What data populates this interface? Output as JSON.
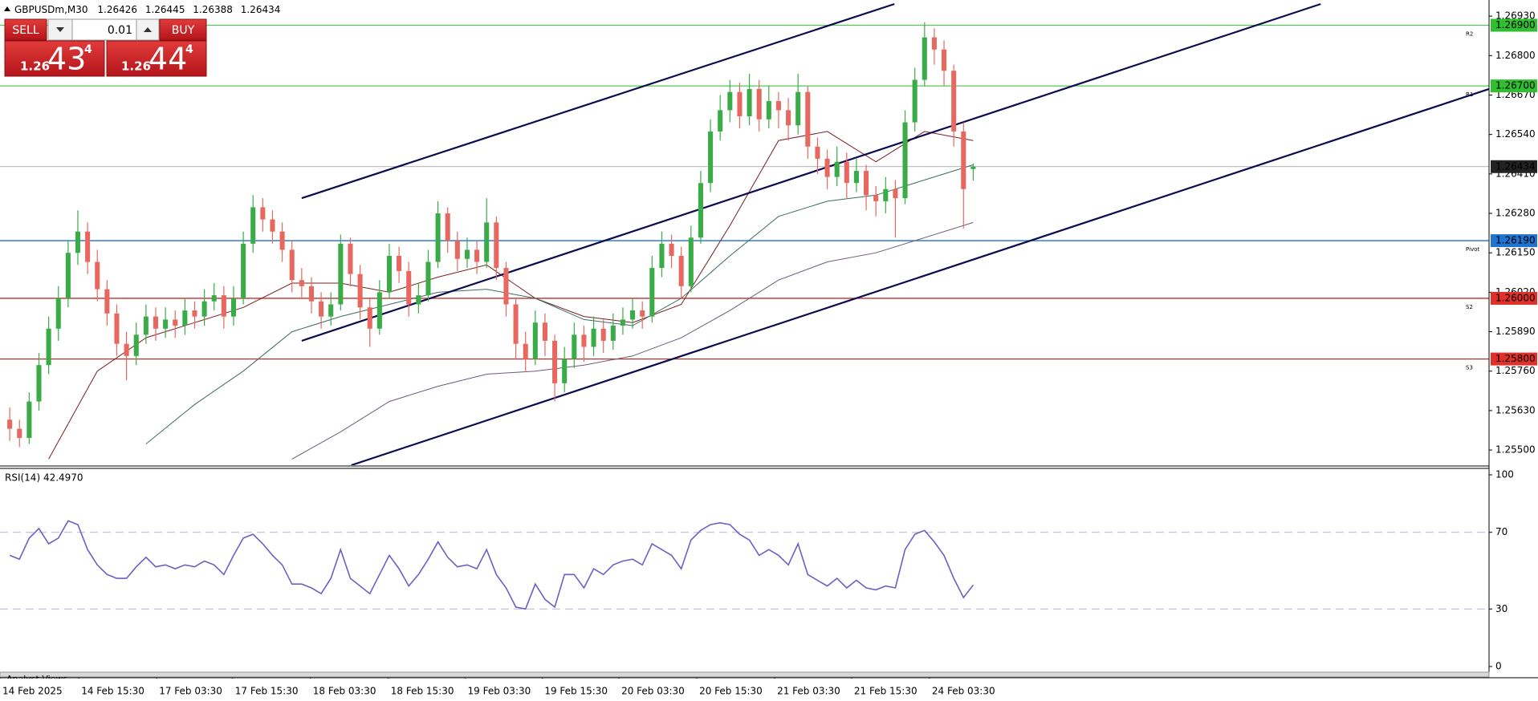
{
  "chart_data": [
    {
      "type": "candlestick",
      "title": "GBPUSDm,M30",
      "up_color": "#3aac47",
      "down_color": "#e8675f",
      "xlim": [
        -1,
        152
      ],
      "xticks": [
        {
          "value": -1,
          "label": "14 Feb 2025"
        },
        {
          "value": 7.1,
          "label": "14 Feb 15:30"
        },
        {
          "value": 15.1,
          "label": "17 Feb 03:30"
        },
        {
          "value": 22.9,
          "label": "17 Feb 15:30"
        },
        {
          "value": 30.9,
          "label": "18 Feb 03:30"
        },
        {
          "value": 38.9,
          "label": "18 Feb 15:30"
        },
        {
          "value": 46.8,
          "label": "19 Feb 03:30"
        },
        {
          "value": 54.7,
          "label": "19 Feb 15:30"
        },
        {
          "value": 62.6,
          "label": "20 Feb 03:30"
        },
        {
          "value": 70.6,
          "label": "20 Feb 15:30"
        },
        {
          "value": 78.6,
          "label": "21 Feb 03:30"
        },
        {
          "value": 86.5,
          "label": "21 Feb 15:30"
        },
        {
          "value": 94.5,
          "label": "24 Feb 03:30"
        }
      ],
      "ylim": [
        1.2545,
        1.2697
      ],
      "yticks": [
        {
          "value": 1.2693,
          "label": "1.26930"
        },
        {
          "value": 1.268,
          "label": "1.26800"
        },
        {
          "value": 1.2667,
          "label": "1.26670"
        },
        {
          "value": 1.2654,
          "label": "1.26540"
        },
        {
          "value": 1.2641,
          "label": "1.26410"
        },
        {
          "value": 1.2628,
          "label": "1.26280"
        },
        {
          "value": 1.2615,
          "label": "1.26150"
        },
        {
          "value": 1.2602,
          "label": "1.26020"
        },
        {
          "value": 1.2589,
          "label": "1.25890"
        },
        {
          "value": 1.2576,
          "label": "1.25760"
        },
        {
          "value": 1.2563,
          "label": "1.25630"
        },
        {
          "value": 1.255,
          "label": "1.25500"
        }
      ],
      "grid": false,
      "ohlc": [
        [
          1.256,
          1.2564,
          1.2553,
          1.2557
        ],
        [
          1.2557,
          1.256,
          1.2551,
          1.2554
        ],
        [
          1.2554,
          1.2569,
          1.2552,
          1.2566
        ],
        [
          1.2566,
          1.2582,
          1.2563,
          1.2578
        ],
        [
          1.2578,
          1.2594,
          1.2575,
          1.259
        ],
        [
          1.259,
          1.2604,
          1.2586,
          1.26
        ],
        [
          1.26,
          1.2619,
          1.2597,
          1.2615
        ],
        [
          1.2615,
          1.2629,
          1.2611,
          1.2622
        ],
        [
          1.2622,
          1.2625,
          1.2608,
          1.2612
        ],
        [
          1.2612,
          1.2616,
          1.2599,
          1.2603
        ],
        [
          1.2603,
          1.2606,
          1.2591,
          1.2595
        ],
        [
          1.2595,
          1.2598,
          1.2581,
          1.2585
        ],
        [
          1.2585,
          1.2589,
          1.2573,
          1.2581
        ],
        [
          1.2581,
          1.2592,
          1.2578,
          1.2588
        ],
        [
          1.2588,
          1.2598,
          1.2585,
          1.2594
        ],
        [
          1.2594,
          1.2597,
          1.2586,
          1.259
        ],
        [
          1.259,
          1.2597,
          1.2587,
          1.2593
        ],
        [
          1.2593,
          1.2596,
          1.2587,
          1.2591
        ],
        [
          1.2591,
          1.26,
          1.2588,
          1.2596
        ],
        [
          1.2596,
          1.2599,
          1.259,
          1.2594
        ],
        [
          1.2594,
          1.2603,
          1.2591,
          1.2599
        ],
        [
          1.2599,
          1.2605,
          1.2596,
          1.2601
        ],
        [
          1.2601,
          1.2604,
          1.259,
          1.2594
        ],
        [
          1.2594,
          1.2604,
          1.2591,
          1.26
        ],
        [
          1.26,
          1.2622,
          1.2598,
          1.2618
        ],
        [
          1.2618,
          1.2634,
          1.2615,
          1.263
        ],
        [
          1.263,
          1.2633,
          1.2622,
          1.2626
        ],
        [
          1.2626,
          1.2629,
          1.2618,
          1.2622
        ],
        [
          1.2622,
          1.2625,
          1.2612,
          1.2616
        ],
        [
          1.2616,
          1.2619,
          1.2602,
          1.2606
        ],
        [
          1.2606,
          1.261,
          1.26,
          1.2604
        ],
        [
          1.2604,
          1.2607,
          1.2595,
          1.2599
        ],
        [
          1.2599,
          1.2602,
          1.259,
          1.2594
        ],
        [
          1.2594,
          1.2602,
          1.2591,
          1.2598
        ],
        [
          1.2598,
          1.2621,
          1.2596,
          1.2618
        ],
        [
          1.2618,
          1.262,
          1.2604,
          1.2608
        ],
        [
          1.2608,
          1.2611,
          1.2593,
          1.2597
        ],
        [
          1.2597,
          1.26,
          1.2584,
          1.259
        ],
        [
          1.259,
          1.2606,
          1.2588,
          1.2602
        ],
        [
          1.2602,
          1.2618,
          1.26,
          1.2614
        ],
        [
          1.2614,
          1.2617,
          1.2605,
          1.2609
        ],
        [
          1.2609,
          1.2612,
          1.2594,
          1.2598
        ],
        [
          1.2598,
          1.2605,
          1.2595,
          1.2601
        ],
        [
          1.2601,
          1.2616,
          1.2599,
          1.2612
        ],
        [
          1.2612,
          1.2632,
          1.261,
          1.2628
        ],
        [
          1.2628,
          1.263,
          1.2615,
          1.2619
        ],
        [
          1.2619,
          1.2622,
          1.2609,
          1.2613
        ],
        [
          1.2613,
          1.262,
          1.261,
          1.2616
        ],
        [
          1.2616,
          1.2619,
          1.2608,
          1.2612
        ],
        [
          1.2612,
          1.2633,
          1.261,
          1.2625
        ],
        [
          1.2625,
          1.2627,
          1.2606,
          1.261
        ],
        [
          1.261,
          1.2612,
          1.2594,
          1.2598
        ],
        [
          1.2598,
          1.26,
          1.258,
          1.2585
        ],
        [
          1.2585,
          1.2589,
          1.2576,
          1.258
        ],
        [
          1.258,
          1.2596,
          1.2578,
          1.2592
        ],
        [
          1.2592,
          1.2595,
          1.2581,
          1.2586
        ],
        [
          1.2586,
          1.2588,
          1.2566,
          1.2572
        ],
        [
          1.2572,
          1.2584,
          1.2569,
          1.258
        ],
        [
          1.258,
          1.2592,
          1.2577,
          1.2588
        ],
        [
          1.2588,
          1.2591,
          1.2579,
          1.2584
        ],
        [
          1.2584,
          1.2594,
          1.2581,
          1.259
        ],
        [
          1.259,
          1.2593,
          1.2582,
          1.2586
        ],
        [
          1.2586,
          1.2595,
          1.2583,
          1.2591
        ],
        [
          1.2591,
          1.2597,
          1.2588,
          1.2593
        ],
        [
          1.2593,
          1.26,
          1.259,
          1.2596
        ],
        [
          1.2596,
          1.2599,
          1.259,
          1.2594
        ],
        [
          1.2594,
          1.2614,
          1.2592,
          1.261
        ],
        [
          1.261,
          1.2622,
          1.2607,
          1.2618
        ],
        [
          1.2618,
          1.2621,
          1.261,
          1.2614
        ],
        [
          1.2614,
          1.2617,
          1.26,
          1.2604
        ],
        [
          1.2604,
          1.2624,
          1.2602,
          1.262
        ],
        [
          1.262,
          1.2642,
          1.2618,
          1.2638
        ],
        [
          1.2638,
          1.2659,
          1.2635,
          1.2655
        ],
        [
          1.2655,
          1.2667,
          1.2652,
          1.2662
        ],
        [
          1.2662,
          1.2672,
          1.2658,
          1.2668
        ],
        [
          1.2668,
          1.2671,
          1.2656,
          1.266
        ],
        [
          1.266,
          1.2674,
          1.2657,
          1.2669
        ],
        [
          1.2669,
          1.2672,
          1.2655,
          1.2659
        ],
        [
          1.2659,
          1.267,
          1.2656,
          1.2665
        ],
        [
          1.2665,
          1.2668,
          1.2656,
          1.2662
        ],
        [
          1.2662,
          1.2666,
          1.2652,
          1.2657
        ],
        [
          1.2657,
          1.2674,
          1.2654,
          1.2668
        ],
        [
          1.2668,
          1.267,
          1.2646,
          1.265
        ],
        [
          1.265,
          1.2653,
          1.2641,
          1.2646
        ],
        [
          1.2646,
          1.2649,
          1.2636,
          1.264
        ],
        [
          1.264,
          1.265,
          1.2637,
          1.2645
        ],
        [
          1.2645,
          1.2648,
          1.2633,
          1.2638
        ],
        [
          1.2638,
          1.2646,
          1.2635,
          1.2642
        ],
        [
          1.2642,
          1.2644,
          1.2629,
          1.2634
        ],
        [
          1.2634,
          1.2637,
          1.2627,
          1.2632
        ],
        [
          1.2632,
          1.264,
          1.2628,
          1.2636
        ],
        [
          1.2636,
          1.2639,
          1.262,
          1.2633
        ],
        [
          1.2633,
          1.2662,
          1.2631,
          1.2658
        ],
        [
          1.2658,
          1.2676,
          1.2655,
          1.2672
        ],
        [
          1.2672,
          1.2691,
          1.267,
          1.2686
        ],
        [
          1.2686,
          1.2689,
          1.2677,
          1.2682
        ],
        [
          1.2682,
          1.2685,
          1.267,
          1.2675
        ],
        [
          1.2675,
          1.2677,
          1.265,
          1.2655
        ],
        [
          1.2655,
          1.2658,
          1.2623,
          1.2636
        ],
        [
          1.26426,
          1.26445,
          1.26388,
          1.26434
        ]
      ],
      "current_color": "#9a9a9a",
      "moving_averages": [
        {
          "color": "#7a1f1f",
          "x": [
            4,
            9,
            14,
            19,
            24,
            29,
            34,
            39,
            44,
            49,
            54,
            59,
            64,
            69,
            74,
            79,
            84,
            89,
            94,
            99
          ],
          "values": [
            1.2547,
            1.2576,
            1.2587,
            1.2592,
            1.2597,
            1.2605,
            1.2605,
            1.2602,
            1.2607,
            1.2611,
            1.26,
            1.2594,
            1.2592,
            1.2598,
            1.2624,
            1.2652,
            1.2655,
            1.2645,
            1.2655,
            1.2652
          ]
        },
        {
          "color": "#3d6b63",
          "x": [
            14,
            19,
            24,
            29,
            34,
            39,
            44,
            49,
            54,
            59,
            64,
            69,
            74,
            79,
            84,
            89,
            94,
            99
          ],
          "values": [
            1.2552,
            1.2565,
            1.2576,
            1.2589,
            1.2594,
            1.2598,
            1.2602,
            1.2603,
            1.26,
            1.2593,
            1.2591,
            1.26,
            1.2614,
            1.2627,
            1.2632,
            1.2634,
            1.2639,
            1.2644
          ]
        },
        {
          "color": "#6e5a78",
          "x": [
            29,
            34,
            39,
            44,
            49,
            54,
            59,
            64,
            69,
            74,
            79,
            84,
            89,
            94,
            99
          ],
          "values": [
            1.2547,
            1.2556,
            1.2566,
            1.2571,
            1.2575,
            1.2576,
            1.2578,
            1.2581,
            1.2587,
            1.2596,
            1.2606,
            1.2612,
            1.2615,
            1.262,
            1.2625
          ]
        }
      ],
      "trendlines": [
        {
          "color": "#0b0b4f",
          "x": [
            30.0,
            90.9
          ],
          "y": [
            1.2633,
            1.2697
          ]
        },
        {
          "color": "#0b0b4f",
          "x": [
            30.0,
            134.7
          ],
          "y": [
            1.2586,
            1.2697
          ]
        },
        {
          "color": "#0b0b4f",
          "x": [
            35.1,
            152.0
          ],
          "y": [
            1.2545,
            1.2669
          ]
        }
      ],
      "levels": [
        {
          "name": "R2",
          "value": 1.269,
          "label": "1.26900",
          "color": "#56c956",
          "box_color": "#2fbf2f"
        },
        {
          "name": "R1",
          "value": 1.267,
          "label": "1.26700",
          "color": "#56c956",
          "box_color": "#2fbf2f"
        },
        {
          "name": "Pivot",
          "value": 1.2619,
          "label": "1.26190",
          "color": "#1f6fc9",
          "box_color": "#1f74d1"
        },
        {
          "name": "S2",
          "value": 1.26,
          "label": "1.26000",
          "color": "#b8332c",
          "box_color": "#e0302a"
        },
        {
          "name": "S3",
          "value": 1.258,
          "label": "1.25800",
          "color": "#b8332c",
          "box_color": "#e0302a"
        }
      ]
    },
    {
      "type": "line",
      "title": "RSI(14) 42.4970",
      "color": "#6f5fc4",
      "ylim": [
        0,
        100
      ],
      "yticks": [
        0,
        30,
        70,
        100
      ],
      "levels": [
        30,
        70
      ],
      "level_color": "#c9b8d9",
      "values": [
        58,
        56,
        67,
        72,
        64,
        67,
        76,
        74,
        61,
        53,
        48,
        46,
        46,
        52,
        57,
        52,
        53,
        51,
        53,
        52,
        55,
        53,
        48,
        58,
        67,
        69,
        64,
        58,
        53,
        43,
        43,
        41,
        38,
        46,
        61,
        46,
        42,
        38,
        48,
        58,
        51,
        42,
        48,
        56,
        65,
        57,
        52,
        53,
        51,
        61,
        48,
        41,
        31,
        30,
        43,
        35,
        31,
        48,
        48,
        41,
        51,
        48,
        53,
        55,
        56,
        53,
        64,
        61,
        58,
        51,
        66,
        71,
        74,
        75,
        74,
        69,
        66,
        58,
        61,
        58,
        53,
        64,
        48,
        45,
        42,
        46,
        41,
        45,
        41,
        40,
        42,
        41,
        61,
        69,
        71,
        65,
        58,
        46,
        36,
        42.497
      ]
    }
  ],
  "trade_panel": {
    "sell": "SELL",
    "buy": "BUY",
    "lot": "0.01",
    "bid": {
      "prefix": "1.26",
      "big": "43",
      "sup": "4"
    },
    "ask": {
      "prefix": "1.26",
      "big": "44",
      "sup": "4"
    }
  },
  "footer": {
    "tab": "Analyst Views"
  }
}
